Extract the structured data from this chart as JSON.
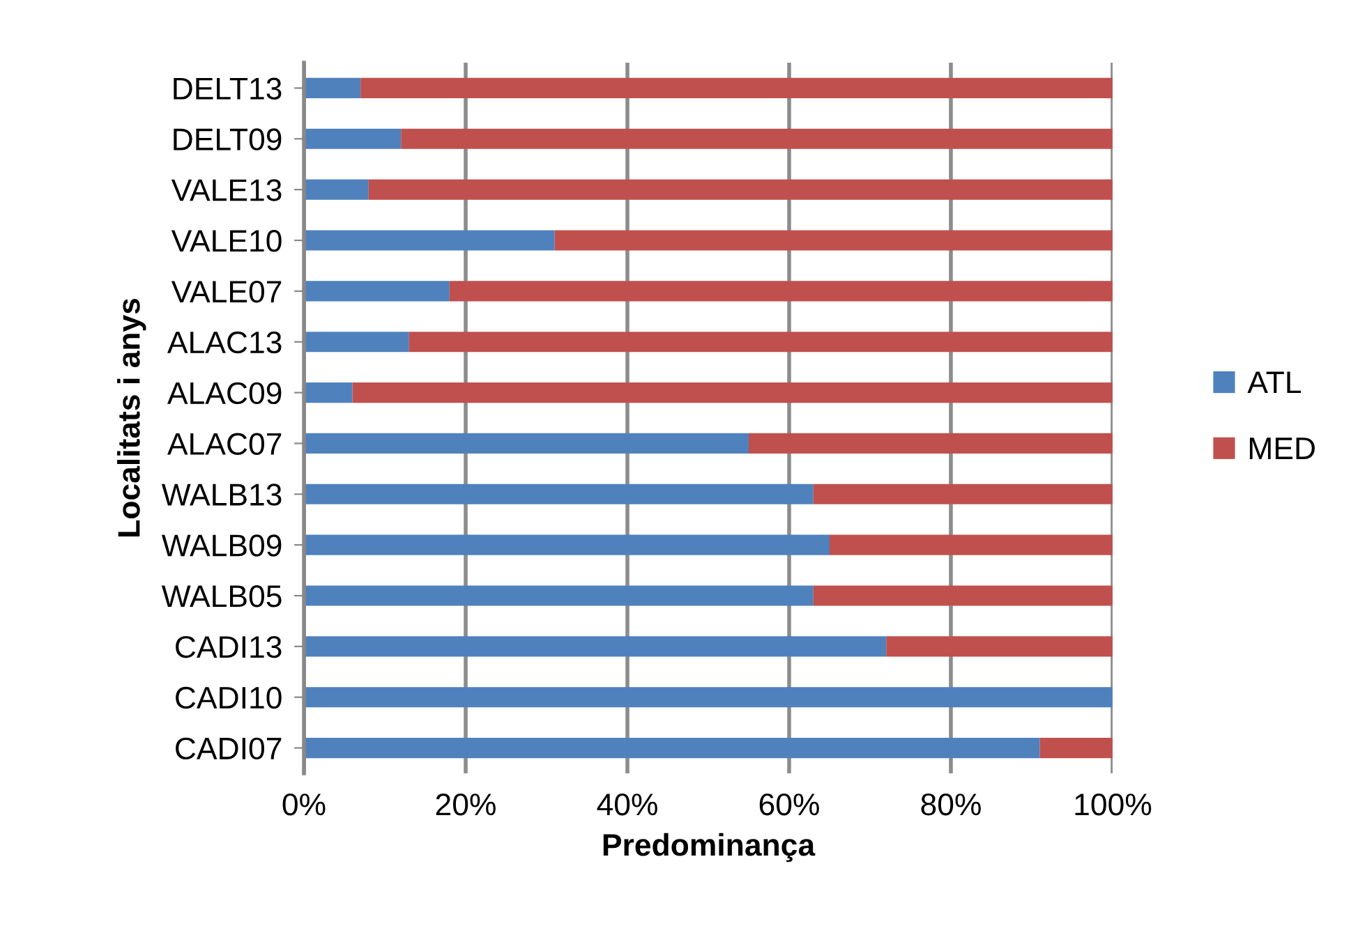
{
  "chart_data": {
    "type": "bar",
    "orientation": "horizontal",
    "stacked": true,
    "xlabel": "Predominança",
    "ylabel": "Localitats i anys",
    "categories": [
      "DELT13",
      "DELT09",
      "VALE13",
      "VALE10",
      "VALE07",
      "ALAC13",
      "ALAC09",
      "ALAC07",
      "WALB13",
      "WALB09",
      "WALB05",
      "CADI13",
      "CADI10",
      "CADI07"
    ],
    "series": [
      {
        "name": "ATL",
        "color": "#4f81bd",
        "values": [
          7,
          12,
          8,
          31,
          18,
          13,
          6,
          55,
          63,
          65,
          63,
          72,
          100,
          91
        ]
      },
      {
        "name": "MED",
        "color": "#c0504d",
        "values": [
          93,
          88,
          92,
          69,
          82,
          87,
          94,
          45,
          37,
          35,
          37,
          28,
          0,
          9
        ]
      }
    ],
    "xlim": [
      0,
      100
    ],
    "xticks": [
      {
        "value": 0,
        "label": "0%"
      },
      {
        "value": 20,
        "label": "20%"
      },
      {
        "value": 40,
        "label": "40%"
      },
      {
        "value": 60,
        "label": "60%"
      },
      {
        "value": 80,
        "label": "80%"
      },
      {
        "value": 100,
        "label": "100%"
      }
    ],
    "grid": "x",
    "legend": "right"
  }
}
